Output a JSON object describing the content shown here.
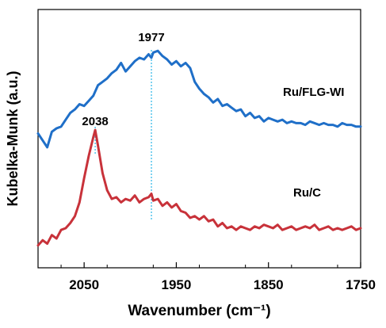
{
  "chart_data": {
    "type": "line",
    "xlabel": "Wavenumber (cm⁻¹)",
    "ylabel": "Kubelka-Munk (a.u.)",
    "x_ticks": [
      2050,
      1950,
      1850,
      1750
    ],
    "x_tick_labels": [
      "2050",
      "1950",
      "1850",
      "1750"
    ],
    "xlim": [
      2100,
      1750
    ],
    "ylim": [
      0,
      1.5
    ],
    "y_ticks_shown": false,
    "grid": false,
    "legend": "none",
    "series": [
      {
        "name": "Ru/FLG-WI",
        "color": "#1f6fc8",
        "x": [
          2100,
          2095,
          2090,
          2085,
          2080,
          2075,
          2070,
          2065,
          2060,
          2055,
          2050,
          2045,
          2040,
          2035,
          2030,
          2025,
          2020,
          2015,
          2010,
          2005,
          2000,
          1995,
          1990,
          1985,
          1980,
          1977,
          1975,
          1970,
          1965,
          1960,
          1955,
          1950,
          1945,
          1940,
          1935,
          1930,
          1925,
          1920,
          1915,
          1910,
          1905,
          1900,
          1895,
          1890,
          1885,
          1880,
          1875,
          1870,
          1865,
          1860,
          1855,
          1850,
          1845,
          1840,
          1835,
          1830,
          1825,
          1820,
          1815,
          1810,
          1805,
          1800,
          1795,
          1790,
          1785,
          1780,
          1775,
          1770,
          1765,
          1760,
          1755,
          1750
        ],
        "values": [
          0.78,
          0.74,
          0.7,
          0.79,
          0.81,
          0.82,
          0.86,
          0.9,
          0.92,
          0.95,
          0.94,
          0.97,
          1.0,
          1.06,
          1.08,
          1.1,
          1.13,
          1.15,
          1.19,
          1.14,
          1.17,
          1.2,
          1.22,
          1.21,
          1.24,
          1.22,
          1.25,
          1.26,
          1.23,
          1.21,
          1.18,
          1.2,
          1.17,
          1.19,
          1.16,
          1.08,
          1.04,
          1.01,
          0.99,
          0.96,
          0.98,
          0.94,
          0.95,
          0.93,
          0.91,
          0.92,
          0.88,
          0.9,
          0.87,
          0.88,
          0.85,
          0.87,
          0.86,
          0.85,
          0.86,
          0.84,
          0.85,
          0.84,
          0.84,
          0.83,
          0.85,
          0.84,
          0.83,
          0.84,
          0.83,
          0.83,
          0.82,
          0.84,
          0.83,
          0.83,
          0.82,
          0.82
        ]
      },
      {
        "name": "Ru/C",
        "color": "#c8323a",
        "x": [
          2100,
          2095,
          2090,
          2085,
          2080,
          2075,
          2070,
          2065,
          2060,
          2055,
          2050,
          2045,
          2040,
          2038,
          2035,
          2030,
          2025,
          2020,
          2015,
          2010,
          2005,
          2000,
          1995,
          1990,
          1985,
          1980,
          1977,
          1975,
          1970,
          1965,
          1960,
          1955,
          1950,
          1945,
          1940,
          1935,
          1930,
          1925,
          1920,
          1915,
          1910,
          1905,
          1900,
          1895,
          1890,
          1885,
          1880,
          1875,
          1870,
          1865,
          1860,
          1855,
          1850,
          1845,
          1840,
          1835,
          1830,
          1825,
          1820,
          1815,
          1810,
          1805,
          1800,
          1795,
          1790,
          1785,
          1780,
          1775,
          1770,
          1765,
          1760,
          1755,
          1750
        ],
        "values": [
          0.13,
          0.16,
          0.14,
          0.19,
          0.17,
          0.22,
          0.23,
          0.26,
          0.3,
          0.38,
          0.52,
          0.65,
          0.76,
          0.8,
          0.71,
          0.55,
          0.45,
          0.4,
          0.41,
          0.38,
          0.4,
          0.39,
          0.42,
          0.38,
          0.4,
          0.41,
          0.43,
          0.39,
          0.4,
          0.36,
          0.38,
          0.35,
          0.37,
          0.33,
          0.32,
          0.29,
          0.3,
          0.28,
          0.3,
          0.27,
          0.28,
          0.24,
          0.26,
          0.23,
          0.24,
          0.22,
          0.24,
          0.23,
          0.22,
          0.24,
          0.23,
          0.25,
          0.24,
          0.23,
          0.25,
          0.22,
          0.23,
          0.24,
          0.22,
          0.23,
          0.24,
          0.23,
          0.25,
          0.22,
          0.23,
          0.24,
          0.22,
          0.23,
          0.22,
          0.23,
          0.24,
          0.22,
          0.23
        ]
      }
    ],
    "annotations": [
      {
        "text": "1977",
        "x": 1977,
        "style": "dotted vertical line",
        "color": "#27b5e8"
      },
      {
        "text": "2038",
        "x": 2038,
        "style": "dotted vertical line",
        "color": "#27b5e8"
      },
      {
        "text": "Ru/FLG-WI",
        "series_label": true
      },
      {
        "text": "Ru/C",
        "series_label": true
      }
    ]
  }
}
